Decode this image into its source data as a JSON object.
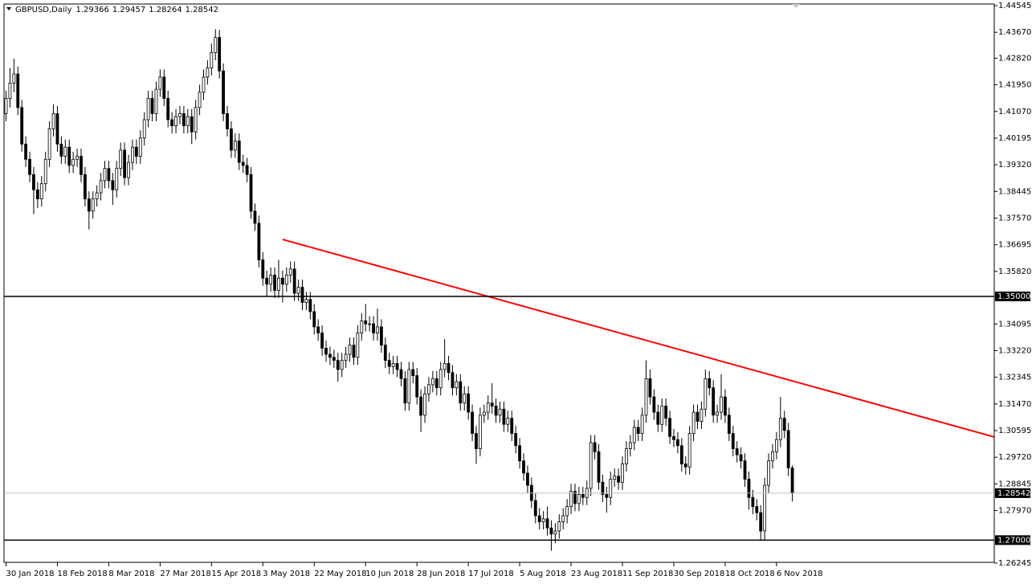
{
  "chart_data": {
    "type": "candlestick",
    "symbol": "GBPUSD,Daily",
    "up_color": "#ffffff",
    "down_color": "#000000",
    "wick_color": "#000000",
    "categories": [
      "30 Jan 2018",
      null,
      null,
      null,
      null,
      null,
      null,
      null,
      null,
      null,
      null,
      null,
      null,
      "18 Feb 2018",
      null,
      null,
      null,
      null,
      null,
      null,
      null,
      null,
      null,
      null,
      null,
      null,
      "8 Mar 2018",
      null,
      null,
      null,
      null,
      null,
      null,
      null,
      null,
      null,
      null,
      null,
      null,
      "27 Mar 2018",
      null,
      null,
      null,
      null,
      null,
      null,
      null,
      null,
      null,
      null,
      null,
      null,
      "15 Apr 2018",
      null,
      null,
      null,
      null,
      null,
      null,
      null,
      null,
      null,
      null,
      null,
      null,
      "3 May 2018",
      null,
      null,
      null,
      null,
      null,
      null,
      null,
      null,
      null,
      null,
      null,
      null,
      "22 May 2018",
      null,
      null,
      null,
      null,
      null,
      null,
      null,
      null,
      null,
      null,
      null,
      null,
      "10 Jun 2018",
      null,
      null,
      null,
      null,
      null,
      null,
      null,
      null,
      null,
      null,
      null,
      null,
      "28 Jun 2018",
      null,
      null,
      null,
      null,
      null,
      null,
      null,
      null,
      null,
      null,
      null,
      null,
      "17 Jul 2018",
      null,
      null,
      null,
      null,
      null,
      null,
      null,
      null,
      null,
      null,
      null,
      null,
      "5 Aug 2018",
      null,
      null,
      null,
      null,
      null,
      null,
      null,
      null,
      null,
      null,
      null,
      null,
      "23 Aug 2018",
      null,
      null,
      null,
      null,
      null,
      null,
      null,
      null,
      null,
      null,
      null,
      null,
      "11 Sep 2018",
      null,
      null,
      null,
      null,
      null,
      null,
      null,
      null,
      null,
      null,
      null,
      null,
      "30 Sep 2018",
      null,
      null,
      null,
      null,
      null,
      null,
      null,
      null,
      null,
      null,
      null,
      null,
      "18 Oct 2018",
      null,
      null,
      null,
      null,
      null,
      null,
      null,
      null,
      null,
      null,
      null,
      null,
      "6 Nov 2018",
      null,
      null,
      null,
      null
    ],
    "open": [
      1.41,
      1.415,
      1.42,
      1.423,
      1.412,
      1.4,
      1.395,
      1.39,
      1.385,
      1.382,
      1.387,
      1.395,
      1.405,
      1.41,
      1.4,
      1.396,
      1.399,
      1.393,
      1.395,
      1.396,
      1.39,
      1.382,
      1.378,
      1.382,
      1.384,
      1.388,
      1.392,
      1.388,
      1.385,
      1.392,
      1.398,
      1.389,
      1.394,
      1.399,
      1.396,
      1.402,
      1.408,
      1.415,
      1.41,
      1.418,
      1.422,
      1.415,
      1.408,
      1.406,
      1.409,
      1.41,
      1.406,
      1.409,
      1.404,
      1.412,
      1.417,
      1.422,
      1.425,
      1.43,
      1.435,
      1.424,
      1.41,
      1.405,
      1.398,
      1.401,
      1.394,
      1.393,
      1.39,
      1.378,
      1.374,
      1.362,
      1.356,
      1.354,
      1.357,
      1.352,
      1.356,
      1.354,
      1.357,
      1.359,
      1.351,
      1.353,
      1.348,
      1.349,
      1.345,
      1.34,
      1.338,
      1.333,
      1.331,
      1.33,
      1.329,
      1.326,
      1.329,
      1.331,
      1.334,
      1.33,
      1.338,
      1.342,
      1.341,
      1.341,
      1.338,
      1.34,
      1.334,
      1.329,
      1.327,
      1.328,
      1.326,
      1.323,
      1.315,
      1.326,
      1.324,
      1.317,
      1.311,
      1.318,
      1.321,
      1.323,
      1.32,
      1.326,
      1.328,
      1.325,
      1.32,
      1.322,
      1.315,
      1.318,
      1.312,
      1.305,
      1.3,
      1.311,
      1.312,
      1.315,
      1.314,
      1.311,
      1.313,
      1.308,
      1.31,
      1.305,
      1.301,
      1.296,
      1.292,
      1.288,
      1.283,
      1.278,
      1.276,
      1.277,
      1.274,
      1.272,
      1.273,
      1.276,
      1.278,
      1.281,
      1.286,
      1.282,
      1.285,
      1.284,
      1.287,
      1.302,
      1.299,
      1.289,
      1.285,
      1.284,
      1.29,
      1.291,
      1.289,
      1.295,
      1.3,
      1.302,
      1.307,
      1.305,
      1.311,
      1.323,
      1.317,
      1.312,
      1.308,
      1.314,
      1.31,
      1.304,
      1.303,
      1.301,
      1.295,
      1.294,
      1.305,
      1.312,
      1.309,
      1.313,
      1.323,
      1.32,
      1.311,
      1.312,
      1.317,
      1.311,
      1.305,
      1.3,
      1.298,
      1.296,
      1.29,
      1.284,
      1.281,
      1.279,
      1.273,
      1.288,
      1.296,
      1.299,
      1.303,
      1.31,
      1.306,
      1.29366
    ],
    "high": [
      1.4175,
      1.425,
      1.428,
      1.4255,
      1.4145,
      1.4025,
      1.3975,
      1.3925,
      1.3875,
      1.3895,
      1.3975,
      1.4075,
      1.413,
      1.4125,
      1.4025,
      1.4015,
      1.4015,
      1.3975,
      1.3985,
      1.3985,
      1.3925,
      1.3845,
      1.3845,
      1.3865,
      1.3905,
      1.3945,
      1.3945,
      1.3905,
      1.3945,
      1.4005,
      1.4005,
      1.3965,
      1.4015,
      1.4015,
      1.4045,
      1.4105,
      1.4175,
      1.4175,
      1.4205,
      1.4245,
      1.4245,
      1.4175,
      1.4105,
      1.4115,
      1.4125,
      1.4125,
      1.4115,
      1.4115,
      1.4145,
      1.4195,
      1.4245,
      1.4275,
      1.433,
      1.4377,
      1.4375,
      1.4265,
      1.4125,
      1.4075,
      1.4035,
      1.4035,
      1.3965,
      1.3955,
      1.3925,
      1.3805,
      1.3765,
      1.3645,
      1.3585,
      1.3595,
      1.3595,
      1.362,
      1.3585,
      1.3595,
      1.3615,
      1.3615,
      1.3555,
      1.3555,
      1.3515,
      1.3515,
      1.3475,
      1.3425,
      1.3405,
      1.3355,
      1.3335,
      1.3325,
      1.3315,
      1.3315,
      1.3335,
      1.3365,
      1.3365,
      1.3405,
      1.3445,
      1.3475,
      1.3435,
      1.3435,
      1.346,
      1.3425,
      1.3365,
      1.3315,
      1.3305,
      1.3305,
      1.3285,
      1.3255,
      1.3285,
      1.3285,
      1.3265,
      1.3195,
      1.3205,
      1.3235,
      1.3255,
      1.3255,
      1.3285,
      1.336,
      1.3305,
      1.3275,
      1.3245,
      1.3245,
      1.3205,
      1.3205,
      1.3145,
      1.3075,
      1.3135,
      1.3145,
      1.3175,
      1.3215,
      1.3165,
      1.3155,
      1.3155,
      1.3125,
      1.3125,
      1.3075,
      1.3035,
      1.2985,
      1.2945,
      1.2905,
      1.2855,
      1.2805,
      1.2795,
      1.281,
      1.2765,
      1.2755,
      1.2785,
      1.2805,
      1.2835,
      1.2885,
      1.2885,
      1.2875,
      1.2875,
      1.2895,
      1.3045,
      1.3045,
      1.3015,
      1.2915,
      1.2875,
      1.2925,
      1.2935,
      1.2935,
      1.2975,
      1.3025,
      1.3045,
      1.3095,
      1.3095,
      1.3135,
      1.329,
      1.326,
      1.3195,
      1.3145,
      1.3165,
      1.3165,
      1.3125,
      1.3065,
      1.3055,
      1.3035,
      1.2975,
      1.3075,
      1.3145,
      1.3145,
      1.3155,
      1.326,
      1.3255,
      1.3225,
      1.3145,
      1.3245,
      1.3195,
      1.3135,
      1.3075,
      1.3025,
      1.3005,
      1.2985,
      1.2925,
      1.2865,
      1.2835,
      1.2815,
      1.2905,
      1.2985,
      1.3015,
      1.3055,
      1.317,
      1.3125,
      1.3085,
      1.29457
    ],
    "low": [
      1.4075,
      1.412,
      1.417,
      1.4095,
      1.3975,
      1.3925,
      1.3875,
      1.377,
      1.379,
      1.3795,
      1.3845,
      1.3925,
      1.4025,
      1.3975,
      1.3935,
      1.3935,
      1.3905,
      1.3905,
      1.3925,
      1.3875,
      1.3795,
      1.372,
      1.3755,
      1.3795,
      1.3815,
      1.3855,
      1.3855,
      1.38,
      1.3825,
      1.3895,
      1.3865,
      1.3865,
      1.3915,
      1.3935,
      1.3935,
      1.3995,
      1.4055,
      1.4075,
      1.4075,
      1.4155,
      1.4125,
      1.4055,
      1.4035,
      1.4035,
      1.4065,
      1.4035,
      1.4035,
      1.4,
      1.4015,
      1.4095,
      1.4145,
      1.4195,
      1.4225,
      1.4275,
      1.4215,
      1.4075,
      1.4025,
      1.3955,
      1.3955,
      1.3915,
      1.3905,
      1.3875,
      1.3755,
      1.3715,
      1.3595,
      1.3535,
      1.35,
      1.3515,
      1.3495,
      1.3495,
      1.348,
      1.3515,
      1.3545,
      1.3485,
      1.3485,
      1.3455,
      1.3455,
      1.3425,
      1.3375,
      1.3355,
      1.3305,
      1.3285,
      1.3275,
      1.3265,
      1.322,
      1.3235,
      1.3265,
      1.3285,
      1.3275,
      1.3275,
      1.3355,
      1.3385,
      1.3385,
      1.3355,
      1.3355,
      1.3315,
      1.3265,
      1.3245,
      1.3245,
      1.3235,
      1.3205,
      1.3125,
      1.3125,
      1.3215,
      1.3145,
      1.3055,
      1.3085,
      1.3155,
      1.3185,
      1.3175,
      1.3175,
      1.3235,
      1.3225,
      1.3175,
      1.3175,
      1.3125,
      1.3125,
      1.3095,
      1.3025,
      1.295,
      1.2975,
      1.3085,
      1.3095,
      1.3115,
      1.3085,
      1.3085,
      1.3055,
      1.3055,
      1.3025,
      1.2985,
      1.2935,
      1.2895,
      1.2855,
      1.2805,
      1.2755,
      1.2735,
      1.2735,
      1.2715,
      1.2665,
      1.269,
      1.2705,
      1.2735,
      1.2755,
      1.2785,
      1.2795,
      1.2795,
      1.2815,
      1.2815,
      1.2845,
      1.2965,
      1.2865,
      1.2825,
      1.279,
      1.2815,
      1.2875,
      1.2865,
      1.2865,
      1.2925,
      1.2975,
      1.2995,
      1.3025,
      1.3025,
      1.3085,
      1.3145,
      1.3095,
      1.3055,
      1.3055,
      1.3075,
      1.3015,
      1.3005,
      1.2985,
      1.2925,
      1.2915,
      1.2915,
      1.3025,
      1.3065,
      1.3065,
      1.3105,
      1.3175,
      1.3085,
      1.3085,
      1.3095,
      1.3085,
      1.3025,
      1.2975,
      1.2955,
      1.2935,
      1.2875,
      1.28,
      1.2785,
      1.2765,
      1.27,
      1.27,
      1.2855,
      1.2935,
      1.2965,
      1.3005,
      1.3035,
      1.291,
      1.28264
    ],
    "close": [
      1.415,
      1.42,
      1.423,
      1.412,
      1.4,
      1.395,
      1.39,
      1.385,
      1.382,
      1.387,
      1.395,
      1.405,
      1.41,
      1.4,
      1.396,
      1.399,
      1.393,
      1.395,
      1.396,
      1.39,
      1.382,
      1.378,
      1.382,
      1.384,
      1.388,
      1.392,
      1.388,
      1.385,
      1.392,
      1.398,
      1.389,
      1.394,
      1.399,
      1.396,
      1.402,
      1.408,
      1.415,
      1.41,
      1.418,
      1.422,
      1.415,
      1.408,
      1.406,
      1.409,
      1.41,
      1.406,
      1.409,
      1.404,
      1.412,
      1.417,
      1.422,
      1.425,
      1.43,
      1.435,
      1.424,
      1.41,
      1.405,
      1.398,
      1.401,
      1.394,
      1.393,
      1.39,
      1.378,
      1.374,
      1.362,
      1.356,
      1.354,
      1.357,
      1.352,
      1.356,
      1.354,
      1.357,
      1.359,
      1.351,
      1.353,
      1.348,
      1.349,
      1.345,
      1.34,
      1.338,
      1.333,
      1.331,
      1.33,
      1.329,
      1.326,
      1.329,
      1.331,
      1.334,
      1.33,
      1.338,
      1.342,
      1.341,
      1.341,
      1.338,
      1.34,
      1.334,
      1.329,
      1.327,
      1.328,
      1.326,
      1.323,
      1.315,
      1.326,
      1.324,
      1.317,
      1.311,
      1.318,
      1.321,
      1.323,
      1.32,
      1.326,
      1.328,
      1.325,
      1.32,
      1.322,
      1.315,
      1.318,
      1.312,
      1.305,
      1.3,
      1.311,
      1.312,
      1.315,
      1.314,
      1.311,
      1.313,
      1.308,
      1.31,
      1.305,
      1.301,
      1.296,
      1.292,
      1.288,
      1.283,
      1.278,
      1.276,
      1.277,
      1.274,
      1.272,
      1.273,
      1.276,
      1.278,
      1.281,
      1.286,
      1.282,
      1.285,
      1.284,
      1.287,
      1.302,
      1.299,
      1.289,
      1.285,
      1.284,
      1.29,
      1.291,
      1.289,
      1.295,
      1.3,
      1.302,
      1.307,
      1.305,
      1.311,
      1.323,
      1.317,
      1.312,
      1.308,
      1.314,
      1.31,
      1.304,
      1.303,
      1.301,
      1.295,
      1.294,
      1.305,
      1.312,
      1.309,
      1.313,
      1.323,
      1.32,
      1.311,
      1.312,
      1.317,
      1.311,
      1.305,
      1.3,
      1.298,
      1.296,
      1.29,
      1.284,
      1.281,
      1.279,
      1.273,
      1.288,
      1.296,
      1.299,
      1.303,
      1.31,
      1.306,
      1.2937,
      1.28542
    ],
    "ylim": [
      1.26245,
      1.44545
    ],
    "yticks": [
      1.44545,
      {
        "value": 1.4367,
        "label": "1.43670"
      },
      {
        "value": 1.4282,
        "label": "1.42820"
      },
      {
        "value": 1.4195,
        "label": "1.41950"
      },
      {
        "value": 1.4107,
        "label": "1.41070"
      },
      1.40195,
      {
        "value": 1.3932,
        "label": "1.39320"
      },
      1.38445,
      {
        "value": 1.3757,
        "label": "1.37570"
      },
      1.36695,
      {
        "value": 1.3582,
        "label": "1.35820"
      },
      1.34095,
      {
        "value": 1.3322,
        "label": "1.33220"
      },
      1.32345,
      {
        "value": 1.3147,
        "label": "1.31470"
      },
      1.30595,
      {
        "value": 1.2972,
        "label": "1.29720"
      },
      1.28845,
      {
        "value": 1.2797,
        "label": "1.27970"
      },
      1.26245
    ],
    "levels": [
      {
        "value": 1.35,
        "label": "1.35000"
      },
      {
        "value": 1.27,
        "label": "1.27000"
      }
    ],
    "level_color": "#000000",
    "price_line_color": "#c0c0c0",
    "trendline": {
      "color": "#ff0000",
      "x": [
        70,
        250
      ],
      "y": [
        1.3687,
        1.3039
      ]
    }
  }
}
